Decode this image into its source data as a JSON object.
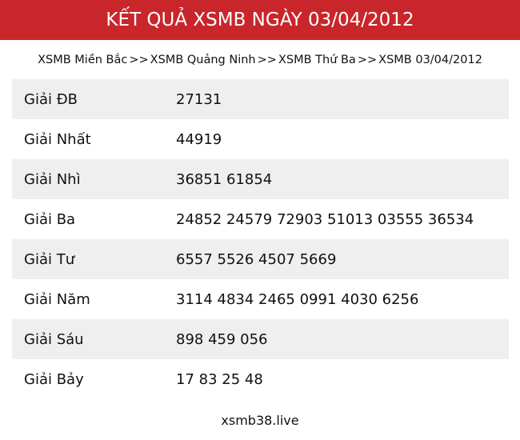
{
  "header": {
    "title": "KẾT QUẢ XSMB NGÀY 03/04/2012"
  },
  "breadcrumb": {
    "items": [
      "XSMB Miền Bắc",
      "XSMB Quảng Ninh",
      "XSMB Thứ Ba",
      "XSMB 03/04/2012"
    ],
    "separator": ">>"
  },
  "table": {
    "rows": [
      [
        "Giải ĐB",
        "27131"
      ],
      [
        "Giải Nhất",
        "44919"
      ],
      [
        "Giải Nhì",
        "36851 61854"
      ],
      [
        "Giải Ba",
        "24852 24579 72903 51013 03555 36534"
      ],
      [
        "Giải Tư",
        "6557 5526 4507 5669"
      ],
      [
        "Giải Năm",
        "3114 4834 2465 0991 4030 6256"
      ],
      [
        "Giải Sáu",
        "898 459 056"
      ],
      [
        "Giải Bảy",
        "17 83 25 48"
      ]
    ]
  },
  "footer": {
    "text": "xsmb38.live"
  }
}
